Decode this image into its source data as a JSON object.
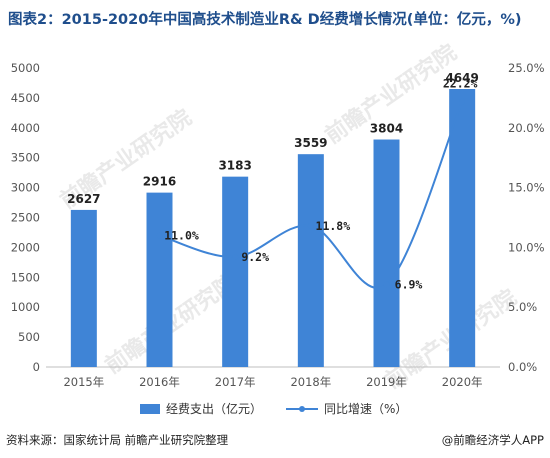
{
  "title": "图表2：2015-2020年中国高技术制造业R& D经费增长情况(单位：亿元，%)",
  "source": "资料来源：国家统计局 前瞻产业研究院整理",
  "brand": "@前瞻经济学人APP",
  "watermark": "前瞻产业研究院",
  "colors": {
    "bar": "#3f84d6",
    "line": "#3f84d6",
    "title": "#1f4e8c"
  },
  "chart_data": {
    "type": "bar",
    "categories": [
      "2015年",
      "2016年",
      "2017年",
      "2018年",
      "2019年",
      "2020年"
    ],
    "series": [
      {
        "name": "经费支出（亿元）",
        "type": "bar",
        "axis": "left",
        "values": [
          2627,
          2916,
          3183,
          3559,
          3804,
          4649
        ],
        "labels": [
          "2627",
          "2916",
          "3183",
          "3559",
          "3804",
          "4649"
        ]
      },
      {
        "name": "同比增速（%）",
        "type": "line",
        "axis": "right",
        "values": [
          null,
          11.0,
          9.2,
          11.8,
          6.9,
          22.2
        ],
        "labels": [
          "",
          "11.0%",
          "9.2%",
          "11.8%",
          "6.9%",
          "22.2%"
        ]
      }
    ],
    "y_left": {
      "min": 0,
      "max": 5000,
      "step": 500,
      "ticks": [
        "0",
        "500",
        "1000",
        "1500",
        "2000",
        "2500",
        "3000",
        "3500",
        "4000",
        "4500",
        "5000"
      ]
    },
    "y_right": {
      "min": 0,
      "max": 25,
      "step": 5,
      "ticks": [
        "0.0%",
        "5.0%",
        "10.0%",
        "15.0%",
        "20.0%",
        "25.0%"
      ]
    },
    "grid": false,
    "legend": "bottom"
  }
}
